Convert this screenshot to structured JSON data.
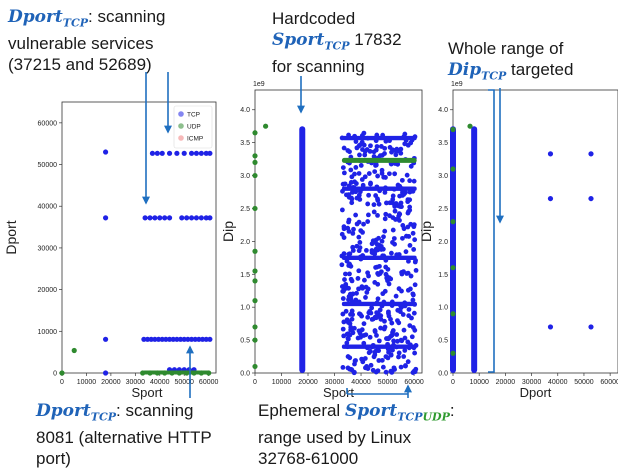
{
  "annotations": {
    "top_left": {
      "sym": "Dport",
      "sub": "TCP",
      "line1_rest": ": scanning",
      "line2": "vulnerable services",
      "line3": "(37215 and 52689)"
    },
    "top_mid": {
      "line1": "Hardcoded",
      "sym": "Sport",
      "sub": "TCP",
      "value": " 17832",
      "line3": "for scanning"
    },
    "top_right": {
      "line1": "Whole range of",
      "sym": "Dip",
      "sub": "TCP",
      "rest": " targeted"
    },
    "bottom_left": {
      "sym": "Dport",
      "sub": "TCP",
      "line1_rest": ": scanning",
      "line2": "8081 (alternative HTTP",
      "line3": "port)"
    },
    "bottom_mid": {
      "prefix": "Ephemeral ",
      "sym": "Sport",
      "sub_a": "TCP",
      "sub_b": "UDP",
      "rest": ":",
      "line2": "range used by Linux",
      "line3": "32768-61000"
    }
  },
  "colors": {
    "tcp": "#1f22e6",
    "udp": "#2f8a2f",
    "icmp": "#f08080",
    "arrow": "#1f6fc0",
    "highlight": "#1f63b8"
  },
  "chart_data": [
    {
      "type": "scatter",
      "xlabel": "Sport",
      "ylabel": "Dport",
      "xlim": [
        0,
        63000
      ],
      "ylim": [
        0,
        65000
      ],
      "xticks": [
        0,
        10000,
        20000,
        30000,
        40000,
        50000,
        60000
      ],
      "yticks": [
        0,
        10000,
        20000,
        30000,
        40000,
        50000,
        60000
      ],
      "legend": {
        "position": "top-right",
        "entries": [
          "TCP",
          "UDP",
          "ICMP"
        ]
      },
      "series": [
        {
          "name": "TCP",
          "points": [
            [
              17832,
              53000
            ],
            [
              17832,
              37215
            ],
            [
              17832,
              8081
            ],
            [
              17832,
              0
            ],
            [
              37000,
              52689
            ],
            [
              39000,
              52689
            ],
            [
              41000,
              52689
            ],
            [
              44000,
              52689
            ],
            [
              47000,
              52689
            ],
            [
              50000,
              52689
            ],
            [
              53000,
              52689
            ],
            [
              55000,
              52689
            ],
            [
              57000,
              52689
            ],
            [
              59000,
              52689
            ],
            [
              60500,
              52689
            ],
            [
              34000,
              37215
            ],
            [
              36000,
              37215
            ],
            [
              38000,
              37215
            ],
            [
              40000,
              37215
            ],
            [
              42000,
              37215
            ],
            [
              44000,
              37215
            ],
            [
              49000,
              37215
            ],
            [
              51000,
              37215
            ],
            [
              53000,
              37215
            ],
            [
              55000,
              37215
            ],
            [
              57000,
              37215
            ],
            [
              59000,
              37215
            ],
            [
              60500,
              37215
            ],
            [
              33500,
              8081
            ],
            [
              35000,
              8081
            ],
            [
              36500,
              8081
            ],
            [
              38000,
              8081
            ],
            [
              39500,
              8081
            ],
            [
              41000,
              8081
            ],
            [
              42500,
              8081
            ],
            [
              44000,
              8081
            ],
            [
              45500,
              8081
            ],
            [
              47000,
              8081
            ],
            [
              48500,
              8081
            ],
            [
              50000,
              8081
            ],
            [
              51500,
              8081
            ],
            [
              53000,
              8081
            ],
            [
              54500,
              8081
            ],
            [
              56000,
              8081
            ],
            [
              57500,
              8081
            ],
            [
              59000,
              8081
            ],
            [
              60500,
              8081
            ],
            [
              44000,
              800
            ],
            [
              46000,
              800
            ],
            [
              48000,
              800
            ],
            [
              50000,
              800
            ],
            [
              52000,
              800
            ],
            [
              54000,
              800
            ]
          ]
        },
        {
          "name": "UDP",
          "points": [
            [
              0,
              0
            ],
            [
              5000,
              5400
            ],
            [
              33000,
              0
            ],
            [
              36000,
              0
            ],
            [
              39000,
              0
            ],
            [
              42000,
              0
            ],
            [
              45000,
              0
            ],
            [
              48000,
              0
            ],
            [
              51000,
              0
            ],
            [
              54000,
              0
            ],
            [
              57000,
              0
            ],
            [
              60000,
              0
            ]
          ]
        },
        {
          "name": "ICMP",
          "points": []
        }
      ]
    },
    {
      "type": "scatter",
      "xlabel": "Sport",
      "ylabel": "Dip",
      "yscale_label": "1e9",
      "xlim": [
        0,
        63000
      ],
      "ylim": [
        0,
        4.3
      ],
      "xticks": [
        0,
        10000,
        20000,
        30000,
        40000,
        50000,
        60000
      ],
      "yticks": [
        0.0,
        0.5,
        1.0,
        1.5,
        2.0,
        2.5,
        3.0,
        3.5,
        4.0
      ],
      "series": [
        {
          "name": "TCP",
          "vertical_band": {
            "x": 17832,
            "y_range": [
              0.0,
              3.75
            ]
          },
          "ephemeral_band": {
            "x_range": [
              32768,
              61000
            ],
            "y_range": [
              0.0,
              3.65
            ]
          }
        },
        {
          "name": "UDP",
          "points": [
            [
              0,
              0.1
            ],
            [
              0,
              0.5
            ],
            [
              0,
              0.7
            ],
            [
              0,
              1.1
            ],
            [
              0,
              1.4
            ],
            [
              0,
              1.55
            ],
            [
              0,
              1.85
            ],
            [
              0,
              2.5
            ],
            [
              0,
              3.0
            ],
            [
              0,
              3.2
            ],
            [
              0,
              3.3
            ],
            [
              0,
              3.65
            ],
            [
              4000,
              3.75
            ]
          ],
          "horizontal_band": {
            "x_range": [
              32768,
              61000
            ],
            "y": 3.23
          }
        }
      ]
    },
    {
      "type": "scatter",
      "xlabel": "Dport",
      "ylabel": "Dip",
      "yscale_label": "1e9",
      "xlim": [
        0,
        63000
      ],
      "ylim": [
        0,
        4.3
      ],
      "xticks": [
        0,
        10000,
        20000,
        30000,
        40000,
        50000,
        60000
      ],
      "yticks": [
        0.0,
        0.5,
        1.0,
        1.5,
        2.0,
        2.5,
        3.0,
        3.5,
        4.0
      ],
      "series": [
        {
          "name": "TCP",
          "points": [
            [
              37215,
              3.33
            ],
            [
              37215,
              2.65
            ],
            [
              37215,
              0.7
            ],
            [
              52689,
              3.33
            ],
            [
              52689,
              2.65
            ],
            [
              52689,
              0.7
            ],
            [
              0,
              2.95
            ]
          ],
          "vertical_bands": [
            {
              "x": 0,
              "y_range": [
                0.0,
                3.75
              ]
            },
            {
              "x": 8081,
              "y_range": [
                0.0,
                3.75
              ]
            }
          ]
        },
        {
          "name": "UDP",
          "points": [
            [
              0,
              0.3
            ],
            [
              0,
              0.9
            ],
            [
              0,
              1.6
            ],
            [
              0,
              2.3
            ],
            [
              0,
              3.1
            ],
            [
              0,
              3.7
            ],
            [
              6500,
              3.75
            ]
          ]
        }
      ]
    }
  ]
}
